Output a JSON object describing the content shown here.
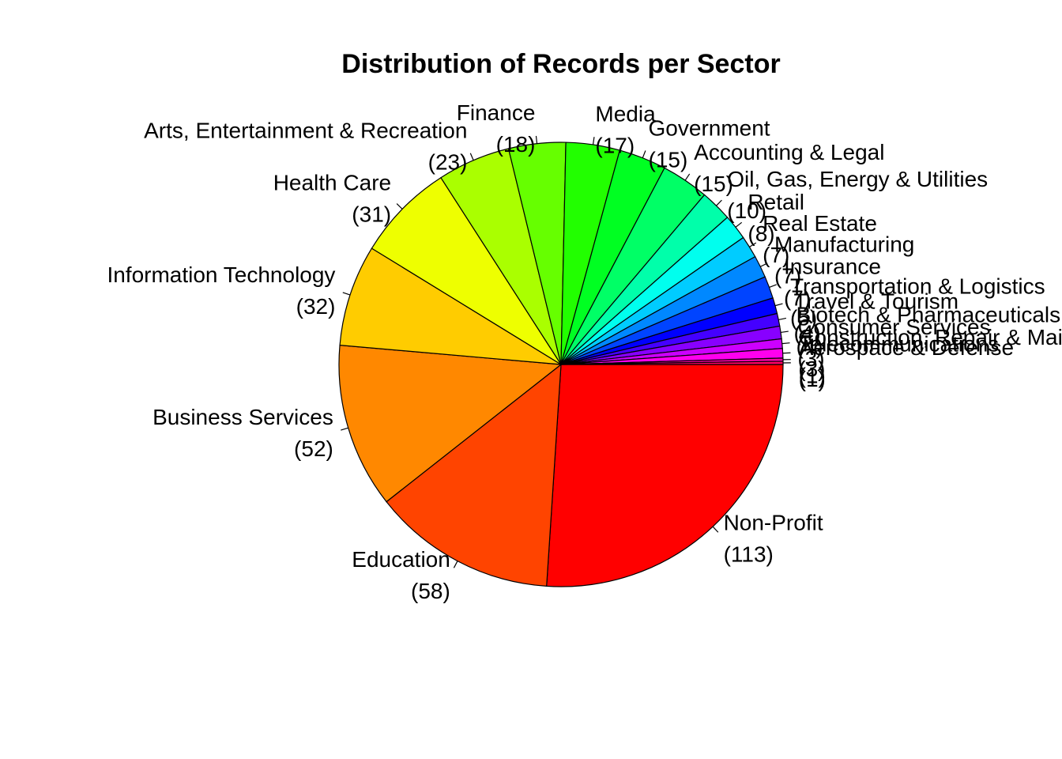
{
  "chart_data": {
    "type": "pie",
    "title": "Distribution of Records per Sector",
    "start_angle_deg": 0,
    "direction": "clockwise",
    "slices": [
      {
        "label": "Non-Profit",
        "value": 113,
        "value_text": "(113)",
        "color": "#FF0000"
      },
      {
        "label": "Education",
        "value": 58,
        "value_text": "(58)",
        "color": "#FF4400"
      },
      {
        "label": "Business Services",
        "value": 52,
        "value_text": "(52)",
        "color": "#FF8800"
      },
      {
        "label": "Information Technology",
        "value": 32,
        "value_text": "(32)",
        "color": "#FFCC00"
      },
      {
        "label": "Health Care",
        "value": 31,
        "value_text": "(31)",
        "color": "#EEFF00"
      },
      {
        "label": "Arts, Entertainment & Recreation",
        "value": 23,
        "value_text": "(23)",
        "color": "#AAFF00"
      },
      {
        "label": "Finance",
        "value": 18,
        "value_text": "(18)",
        "color": "#66FF00"
      },
      {
        "label": "Media",
        "value": 17,
        "value_text": "(17)",
        "color": "#22FF00"
      },
      {
        "label": "Government",
        "value": 15,
        "value_text": "(15)",
        "color": "#00FF22"
      },
      {
        "label": "Accounting & Legal",
        "value": 15,
        "value_text": "(15)",
        "color": "#00FF66"
      },
      {
        "label": "Oil, Gas, Energy & Utilities",
        "value": 10,
        "value_text": "(10)",
        "color": "#00FFAA"
      },
      {
        "label": "Retail",
        "value": 8,
        "value_text": "(8)",
        "color": "#00FFEE"
      },
      {
        "label": "Real Estate",
        "value": 7,
        "value_text": "(7)",
        "color": "#00CCFF"
      },
      {
        "label": "Manufacturing",
        "value": 7,
        "value_text": "(7)",
        "color": "#0088FF"
      },
      {
        "label": "Insurance",
        "value": 7,
        "value_text": "(7)",
        "color": "#0044FF"
      },
      {
        "label": "Transportation & Logistics",
        "value": 5,
        "value_text": "(5)",
        "color": "#0000FF"
      },
      {
        "label": "Travel & Tourism",
        "value": 4,
        "value_text": "(4)",
        "color": "#4400FF"
      },
      {
        "label": "Biotech & Pharmaceuticals",
        "value": 4,
        "value_text": "(4)",
        "color": "#8800FF"
      },
      {
        "label": "Consumer Services",
        "value": 3,
        "value_text": "(3)",
        "color": "#CC00FF"
      },
      {
        "label": "Construction, Repair & Maintenance",
        "value": 3,
        "value_text": "(3)",
        "color": "#FF00EE"
      },
      {
        "label": "Telecommunications",
        "value": 1,
        "value_text": "(1)",
        "color": "#FF00AA"
      },
      {
        "label": "Aerospace & Defense",
        "value": 1,
        "value_text": "(1)",
        "color": "#FF0066"
      }
    ]
  }
}
